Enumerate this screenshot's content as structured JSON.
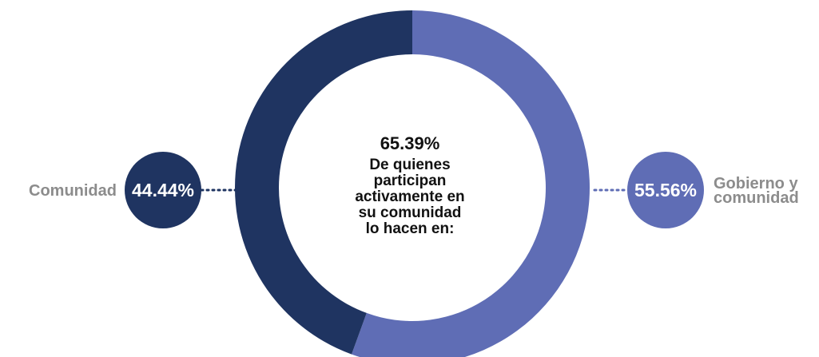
{
  "chart_data": {
    "type": "pie",
    "style": "donut",
    "center": {
      "value": "65.39%",
      "text": [
        "De quienes",
        "participan",
        "activamente en",
        "su comunidad",
        "lo hacen en:"
      ]
    },
    "slices": [
      {
        "label": "Gobierno y comunidad",
        "label_lines": [
          "Gobierno y",
          "comunidad"
        ],
        "value": 55.56,
        "display": "55.56%",
        "color": "#5f6db5"
      },
      {
        "label": "Comunidad",
        "label_lines": [
          "Comunidad"
        ],
        "value": 44.44,
        "display": "44.44%",
        "color": "#1f3461"
      }
    ],
    "start": "top",
    "direction": "clockwise"
  }
}
